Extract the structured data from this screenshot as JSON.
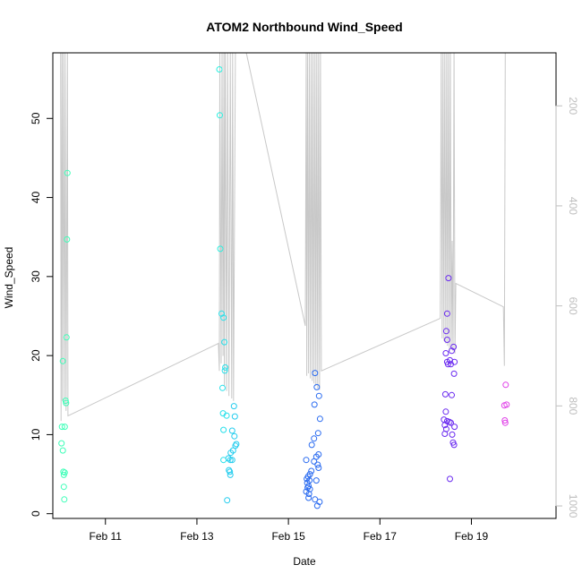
{
  "chart_data": {
    "type": "scatter",
    "title": "ATOM2 Northbound Wind_Speed",
    "xlabel": "Date",
    "ylabel": "Wind_Speed",
    "x_unit": "days (Feb)",
    "xlim": [
      9.85,
      20.85
    ],
    "ylim": [
      -0.6,
      58.3
    ],
    "x_ticks": [
      {
        "value": 11,
        "label": "Feb 11"
      },
      {
        "value": 13,
        "label": "Feb 13"
      },
      {
        "value": 15,
        "label": "Feb 15"
      },
      {
        "value": 17,
        "label": "Feb 17"
      },
      {
        "value": 19,
        "label": "Feb 19"
      }
    ],
    "y_ticks": [
      0,
      10,
      20,
      30,
      40,
      50
    ],
    "right_axis": {
      "ticks": [
        200,
        400,
        600,
        800,
        1000
      ],
      "range": [
        94,
        1025
      ],
      "color": "#bebebe",
      "reversed": true
    },
    "grid": false,
    "legend": "none",
    "points": [
      {
        "x": 10.17,
        "y": 43.1,
        "color": "#3dffb8"
      },
      {
        "x": 10.16,
        "y": 34.7,
        "color": "#3dffb8"
      },
      {
        "x": 10.15,
        "y": 22.3,
        "color": "#3dffb8"
      },
      {
        "x": 10.07,
        "y": 19.3,
        "color": "#3dffb8"
      },
      {
        "x": 10.13,
        "y": 14.3,
        "color": "#3dffb8"
      },
      {
        "x": 10.14,
        "y": 14.0,
        "color": "#3dffb8"
      },
      {
        "x": 10.05,
        "y": 11.0,
        "color": "#3dffb8"
      },
      {
        "x": 10.11,
        "y": 11.0,
        "color": "#3dffb8"
      },
      {
        "x": 10.04,
        "y": 8.9,
        "color": "#3dffb8"
      },
      {
        "x": 10.07,
        "y": 8.0,
        "color": "#3dffb8"
      },
      {
        "x": 10.08,
        "y": 5.3,
        "color": "#3dffb8"
      },
      {
        "x": 10.11,
        "y": 5.2,
        "color": "#3dffb8"
      },
      {
        "x": 10.09,
        "y": 4.9,
        "color": "#3dffb8"
      },
      {
        "x": 10.09,
        "y": 3.4,
        "color": "#3dffb8"
      },
      {
        "x": 10.1,
        "y": 1.8,
        "color": "#3dffb8"
      },
      {
        "x": 13.49,
        "y": 56.2,
        "color": "#2af0e0"
      },
      {
        "x": 13.5,
        "y": 50.4,
        "color": "#2af0e0"
      },
      {
        "x": 13.51,
        "y": 33.5,
        "color": "#2af0e0"
      },
      {
        "x": 13.54,
        "y": 25.3,
        "color": "#26e0ea"
      },
      {
        "x": 13.58,
        "y": 24.8,
        "color": "#26e0ea"
      },
      {
        "x": 13.6,
        "y": 21.7,
        "color": "#26e0ea"
      },
      {
        "x": 13.62,
        "y": 18.5,
        "color": "#26e0ea"
      },
      {
        "x": 13.61,
        "y": 18.1,
        "color": "#26e0ea"
      },
      {
        "x": 13.56,
        "y": 15.9,
        "color": "#26e0ea"
      },
      {
        "x": 13.81,
        "y": 13.6,
        "color": "#22ccee"
      },
      {
        "x": 13.57,
        "y": 12.7,
        "color": "#26e0ea"
      },
      {
        "x": 13.65,
        "y": 12.4,
        "color": "#26e0ea"
      },
      {
        "x": 13.83,
        "y": 12.3,
        "color": "#22ccee"
      },
      {
        "x": 13.58,
        "y": 10.6,
        "color": "#26e0ea"
      },
      {
        "x": 13.77,
        "y": 10.5,
        "color": "#22ccee"
      },
      {
        "x": 13.82,
        "y": 9.8,
        "color": "#22ccee"
      },
      {
        "x": 13.86,
        "y": 8.8,
        "color": "#22ccee"
      },
      {
        "x": 13.84,
        "y": 8.6,
        "color": "#22ccee"
      },
      {
        "x": 13.79,
        "y": 8.0,
        "color": "#22ccee"
      },
      {
        "x": 13.74,
        "y": 7.7,
        "color": "#22ccee"
      },
      {
        "x": 13.69,
        "y": 7.0,
        "color": "#22ccee"
      },
      {
        "x": 13.58,
        "y": 6.8,
        "color": "#26e0ea"
      },
      {
        "x": 13.73,
        "y": 6.8,
        "color": "#22ccee"
      },
      {
        "x": 13.77,
        "y": 6.8,
        "color": "#22ccee"
      },
      {
        "x": 13.7,
        "y": 5.5,
        "color": "#22ccee"
      },
      {
        "x": 13.72,
        "y": 5.3,
        "color": "#22ccee"
      },
      {
        "x": 13.73,
        "y": 4.9,
        "color": "#22ccee"
      },
      {
        "x": 13.66,
        "y": 1.7,
        "color": "#22ccee"
      },
      {
        "x": 15.58,
        "y": 17.8,
        "color": "#2a6bf0"
      },
      {
        "x": 15.62,
        "y": 16.0,
        "color": "#2a6bf0"
      },
      {
        "x": 15.67,
        "y": 14.9,
        "color": "#2a6bf0"
      },
      {
        "x": 15.57,
        "y": 13.8,
        "color": "#2a6bf0"
      },
      {
        "x": 15.69,
        "y": 12.0,
        "color": "#2a6bf0"
      },
      {
        "x": 15.65,
        "y": 10.2,
        "color": "#2a6bf0"
      },
      {
        "x": 15.56,
        "y": 9.5,
        "color": "#2a6bf0"
      },
      {
        "x": 15.51,
        "y": 8.7,
        "color": "#2a6bf0"
      },
      {
        "x": 15.66,
        "y": 7.5,
        "color": "#2a6bf0"
      },
      {
        "x": 15.61,
        "y": 7.2,
        "color": "#2a6bf0"
      },
      {
        "x": 15.39,
        "y": 6.8,
        "color": "#2a6bf0"
      },
      {
        "x": 15.56,
        "y": 6.6,
        "color": "#2a6bf0"
      },
      {
        "x": 15.64,
        "y": 6.2,
        "color": "#2a6bf0"
      },
      {
        "x": 15.66,
        "y": 5.8,
        "color": "#2a6bf0"
      },
      {
        "x": 15.5,
        "y": 5.4,
        "color": "#2a6bf0"
      },
      {
        "x": 15.47,
        "y": 5.0,
        "color": "#2a6bf0"
      },
      {
        "x": 15.43,
        "y": 4.7,
        "color": "#2a6bf0"
      },
      {
        "x": 15.4,
        "y": 4.4,
        "color": "#2a6bf0"
      },
      {
        "x": 15.46,
        "y": 4.2,
        "color": "#2a6bf0"
      },
      {
        "x": 15.61,
        "y": 4.2,
        "color": "#2a6bf0"
      },
      {
        "x": 15.41,
        "y": 3.9,
        "color": "#2a6bf0"
      },
      {
        "x": 15.44,
        "y": 3.5,
        "color": "#2a6bf0"
      },
      {
        "x": 15.42,
        "y": 3.3,
        "color": "#2a6bf0"
      },
      {
        "x": 15.47,
        "y": 3.1,
        "color": "#2a6bf0"
      },
      {
        "x": 15.39,
        "y": 2.8,
        "color": "#2a6bf0"
      },
      {
        "x": 15.45,
        "y": 2.5,
        "color": "#2a6bf0"
      },
      {
        "x": 15.44,
        "y": 2.0,
        "color": "#2a6bf0"
      },
      {
        "x": 15.58,
        "y": 1.8,
        "color": "#2a6bf0"
      },
      {
        "x": 15.68,
        "y": 1.5,
        "color": "#2a6bf0"
      },
      {
        "x": 15.63,
        "y": 1.0,
        "color": "#2a6bf0"
      },
      {
        "x": 18.5,
        "y": 29.8,
        "color": "#6a2af0"
      },
      {
        "x": 18.47,
        "y": 25.3,
        "color": "#6a2af0"
      },
      {
        "x": 18.45,
        "y": 23.1,
        "color": "#6a2af0"
      },
      {
        "x": 18.47,
        "y": 22.0,
        "color": "#6a2af0"
      },
      {
        "x": 18.61,
        "y": 21.1,
        "color": "#6a2af0"
      },
      {
        "x": 18.57,
        "y": 20.6,
        "color": "#6a2af0"
      },
      {
        "x": 18.44,
        "y": 20.3,
        "color": "#6a2af0"
      },
      {
        "x": 18.53,
        "y": 19.4,
        "color": "#6a2af0"
      },
      {
        "x": 18.47,
        "y": 19.2,
        "color": "#6a2af0"
      },
      {
        "x": 18.63,
        "y": 19.2,
        "color": "#6a2af0"
      },
      {
        "x": 18.49,
        "y": 18.9,
        "color": "#6a2af0"
      },
      {
        "x": 18.55,
        "y": 18.9,
        "color": "#6a2af0"
      },
      {
        "x": 18.62,
        "y": 17.7,
        "color": "#6a2af0"
      },
      {
        "x": 18.43,
        "y": 15.1,
        "color": "#6a2af0"
      },
      {
        "x": 18.57,
        "y": 15.0,
        "color": "#6a2af0"
      },
      {
        "x": 18.44,
        "y": 12.9,
        "color": "#6a2af0"
      },
      {
        "x": 18.4,
        "y": 11.9,
        "color": "#6a2af0"
      },
      {
        "x": 18.47,
        "y": 11.7,
        "color": "#6a2af0"
      },
      {
        "x": 18.52,
        "y": 11.6,
        "color": "#6a2af0"
      },
      {
        "x": 18.55,
        "y": 11.5,
        "color": "#6a2af0"
      },
      {
        "x": 18.42,
        "y": 11.2,
        "color": "#6a2af0"
      },
      {
        "x": 18.45,
        "y": 10.7,
        "color": "#6a2af0"
      },
      {
        "x": 18.63,
        "y": 11.0,
        "color": "#6a2af0"
      },
      {
        "x": 18.42,
        "y": 10.1,
        "color": "#6a2af0"
      },
      {
        "x": 18.58,
        "y": 10.0,
        "color": "#6a2af0"
      },
      {
        "x": 18.6,
        "y": 9.0,
        "color": "#6a2af0"
      },
      {
        "x": 18.62,
        "y": 8.7,
        "color": "#6a2af0"
      },
      {
        "x": 18.53,
        "y": 4.4,
        "color": "#6a2af0"
      },
      {
        "x": 19.75,
        "y": 16.3,
        "color": "#e040e8"
      },
      {
        "x": 19.72,
        "y": 13.7,
        "color": "#e040e8"
      },
      {
        "x": 19.77,
        "y": 13.8,
        "color": "#e040e8"
      },
      {
        "x": 19.73,
        "y": 11.8,
        "color": "#e040e8"
      },
      {
        "x": 19.74,
        "y": 11.5,
        "color": "#e040e8"
      }
    ],
    "pressure_line": {
      "color": "#c8c8c8",
      "y_unit": "right-axis units",
      "vertices": [
        {
          "x": 10.02,
          "y": 94
        },
        {
          "x": 10.03,
          "y": 830
        },
        {
          "x": 10.05,
          "y": 94
        },
        {
          "x": 10.06,
          "y": 790
        },
        {
          "x": 10.08,
          "y": 94
        },
        {
          "x": 10.1,
          "y": 800
        },
        {
          "x": 10.12,
          "y": 94
        },
        {
          "x": 10.14,
          "y": 810
        },
        {
          "x": 10.17,
          "y": 94
        },
        {
          "x": 10.18,
          "y": 820
        },
        {
          "x": 13.47,
          "y": 675
        },
        {
          "x": 13.49,
          "y": 730
        },
        {
          "x": 13.5,
          "y": 94
        },
        {
          "x": 13.53,
          "y": 715
        },
        {
          "x": 13.55,
          "y": 94
        },
        {
          "x": 13.57,
          "y": 700
        },
        {
          "x": 13.59,
          "y": 94
        },
        {
          "x": 13.6,
          "y": 760
        },
        {
          "x": 13.62,
          "y": 94
        },
        {
          "x": 13.65,
          "y": 770
        },
        {
          "x": 13.67,
          "y": 94
        },
        {
          "x": 13.7,
          "y": 780
        },
        {
          "x": 13.73,
          "y": 94
        },
        {
          "x": 13.76,
          "y": 785
        },
        {
          "x": 13.78,
          "y": 94
        },
        {
          "x": 13.8,
          "y": 790
        },
        {
          "x": 13.84,
          "y": 94
        },
        {
          "x": 14.08,
          "y": 94
        },
        {
          "x": 15.37,
          "y": 640
        },
        {
          "x": 15.39,
          "y": 94
        },
        {
          "x": 15.4,
          "y": 740
        },
        {
          "x": 15.42,
          "y": 94
        },
        {
          "x": 15.44,
          "y": 735
        },
        {
          "x": 15.46,
          "y": 94
        },
        {
          "x": 15.48,
          "y": 745
        },
        {
          "x": 15.5,
          "y": 94
        },
        {
          "x": 15.52,
          "y": 750
        },
        {
          "x": 15.54,
          "y": 94
        },
        {
          "x": 15.56,
          "y": 755
        },
        {
          "x": 15.58,
          "y": 94
        },
        {
          "x": 15.6,
          "y": 760
        },
        {
          "x": 15.62,
          "y": 94
        },
        {
          "x": 15.64,
          "y": 765
        },
        {
          "x": 15.66,
          "y": 94
        },
        {
          "x": 15.68,
          "y": 768
        },
        {
          "x": 15.7,
          "y": 94
        },
        {
          "x": 15.72,
          "y": 730
        },
        {
          "x": 18.32,
          "y": 625
        },
        {
          "x": 18.34,
          "y": 94
        },
        {
          "x": 18.36,
          "y": 665
        },
        {
          "x": 18.38,
          "y": 94
        },
        {
          "x": 18.4,
          "y": 670
        },
        {
          "x": 18.42,
          "y": 94
        },
        {
          "x": 18.44,
          "y": 675
        },
        {
          "x": 18.46,
          "y": 94
        },
        {
          "x": 18.48,
          "y": 680
        },
        {
          "x": 18.5,
          "y": 94
        },
        {
          "x": 18.52,
          "y": 690
        },
        {
          "x": 18.54,
          "y": 94
        },
        {
          "x": 18.56,
          "y": 685
        },
        {
          "x": 18.58,
          "y": 470
        },
        {
          "x": 18.6,
          "y": 690
        },
        {
          "x": 18.62,
          "y": 94
        },
        {
          "x": 18.64,
          "y": 695
        },
        {
          "x": 18.66,
          "y": 555
        },
        {
          "x": 19.7,
          "y": 602
        },
        {
          "x": 19.72,
          "y": 720
        },
        {
          "x": 19.74,
          "y": 94
        }
      ]
    }
  }
}
